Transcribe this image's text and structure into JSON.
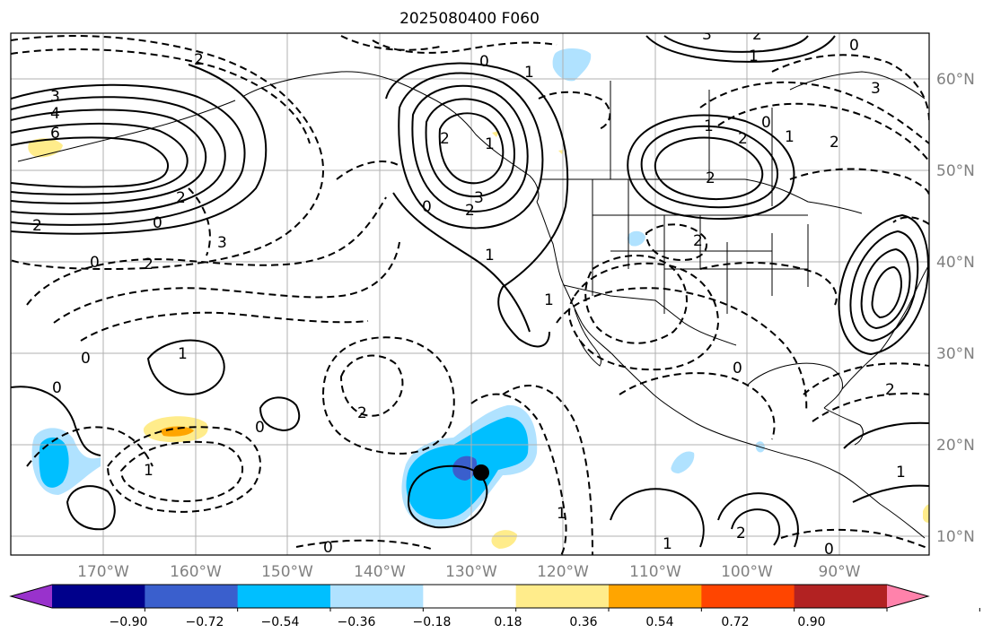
{
  "title": "2025080400 F060",
  "longitude_labels": [
    "170°W",
    "160°W",
    "150°W",
    "140°W",
    "130°W",
    "120°W",
    "110°W",
    "100°W",
    "90°W"
  ],
  "latitude_labels": [
    "60°N",
    "50°N",
    "40°N",
    "30°N",
    "20°N",
    "10°N"
  ],
  "colorbar": {
    "tick_labels": [
      "−0.90",
      "−0.72",
      "−0.54",
      "−0.36",
      "−0.18",
      "0.18",
      "0.36",
      "0.54",
      "0.72",
      "0.90"
    ],
    "colors": [
      "#9932cc",
      "#00008b",
      "#3a5fcd",
      "#00bfff",
      "#b0e2ff",
      "#ffffff",
      "#ffec8b",
      "#ffa500",
      "#ff4500",
      "#b22222",
      "#ff82ab"
    ]
  },
  "contour_labels": [
    {
      "text": "3"
    },
    {
      "text": "4"
    },
    {
      "text": "6"
    },
    {
      "text": "2"
    },
    {
      "text": "0"
    },
    {
      "text": "2"
    },
    {
      "text": "0"
    },
    {
      "text": "2"
    },
    {
      "text": "3"
    },
    {
      "text": "0"
    },
    {
      "text": "2"
    },
    {
      "text": "1"
    },
    {
      "text": "3"
    },
    {
      "text": "2"
    },
    {
      "text": "0"
    },
    {
      "text": "1"
    },
    {
      "text": "2"
    },
    {
      "text": "3"
    },
    {
      "text": "1"
    },
    {
      "text": "0"
    },
    {
      "text": "2"
    },
    {
      "text": "1"
    },
    {
      "text": "2"
    },
    {
      "text": "2"
    },
    {
      "text": "0"
    },
    {
      "text": "2"
    },
    {
      "text": "1"
    },
    {
      "text": "3"
    },
    {
      "text": "0"
    },
    {
      "text": "1"
    },
    {
      "text": "2"
    },
    {
      "text": "1"
    },
    {
      "text": "0"
    },
    {
      "text": "2"
    },
    {
      "text": "1"
    },
    {
      "text": "1"
    },
    {
      "text": "2"
    },
    {
      "text": "0"
    },
    {
      "text": "0"
    },
    {
      "text": "2"
    },
    {
      "text": "1"
    },
    {
      "text": "0"
    },
    {
      "text": "1"
    },
    {
      "text": "1"
    },
    {
      "text": "0"
    }
  ],
  "colors": {
    "grid": "#b0b0b0",
    "tick_label": "#808080",
    "contour": "#000000",
    "coast": "#000000"
  }
}
